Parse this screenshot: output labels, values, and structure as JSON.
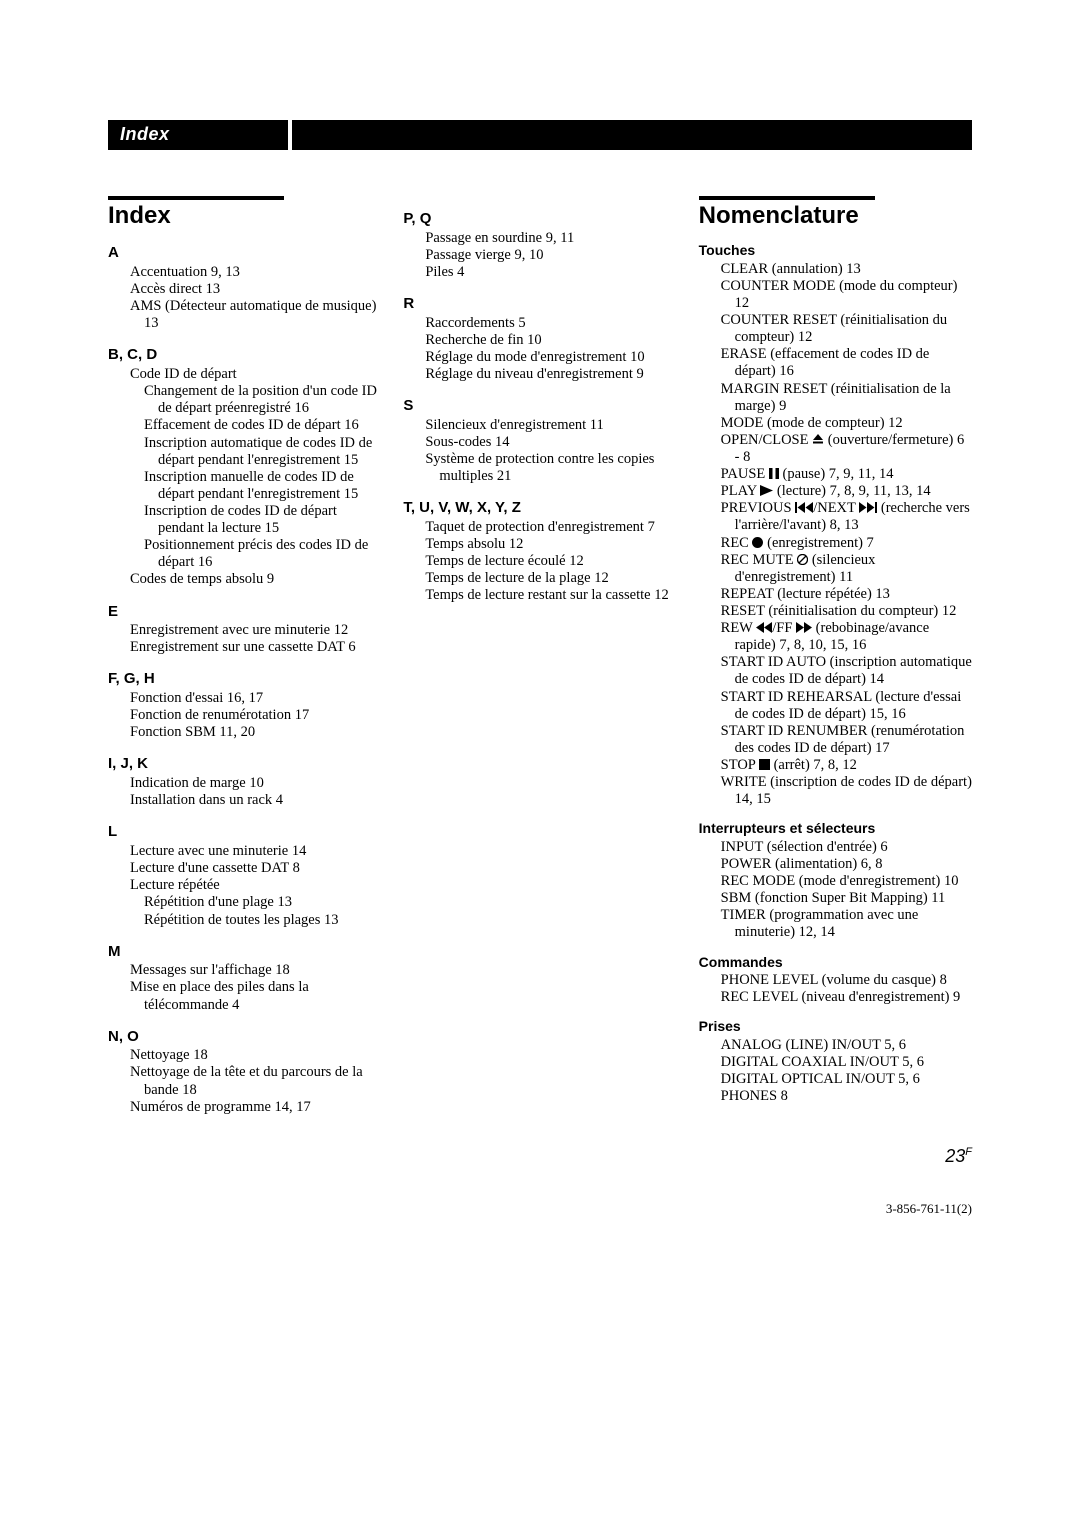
{
  "header": {
    "title": "Index"
  },
  "col1": {
    "mainTitle": "Index",
    "groups": [
      {
        "letter": "A",
        "entries": [
          {
            "t": "Accentuation  9, 13"
          },
          {
            "t": "Accès direct  13"
          },
          {
            "t": "AMS (Détecteur automatique de musique)  13"
          }
        ]
      },
      {
        "letter": "B, C, D",
        "entries": [
          {
            "t": "Code ID de départ"
          },
          {
            "t": "Changement de la position d'un code ID de départ préenregistré  16",
            "lvl": 1
          },
          {
            "t": "Effacement de codes ID de départ  16",
            "lvl": 1
          },
          {
            "t": "Inscription automatique de codes ID de départ pendant l'enregistrement  15",
            "lvl": 1
          },
          {
            "t": "Inscription manuelle de codes ID de départ pendant l'enregistrement  15",
            "lvl": 1
          },
          {
            "t": "Inscription de codes ID de départ pendant la lecture  15",
            "lvl": 1
          },
          {
            "t": "Positionnement précis des codes ID de départ  16",
            "lvl": 1
          },
          {
            "t": "Codes de temps absolu  9"
          }
        ]
      },
      {
        "letter": "E",
        "entries": [
          {
            "t": "Enregistrement avec ure minuterie  12"
          },
          {
            "t": "Enregistrement sur une cassette DAT 6"
          }
        ]
      },
      {
        "letter": "F, G, H",
        "entries": [
          {
            "t": "Fonction d'essai  16, 17"
          },
          {
            "t": "Fonction de renumérotation  17"
          },
          {
            "t": "Fonction SBM  11, 20"
          }
        ]
      },
      {
        "letter": "I, J, K",
        "entries": [
          {
            "t": "Indication de marge  10"
          },
          {
            "t": "Installation dans un rack  4"
          }
        ]
      },
      {
        "letter": "L",
        "entries": [
          {
            "t": "Lecture avec une minuterie  14"
          },
          {
            "t": "Lecture d'une cassette DAT  8"
          },
          {
            "t": "Lecture répétée"
          },
          {
            "t": "Répétition d'une plage  13",
            "lvl": 1
          },
          {
            "t": "Répétition de toutes les plages  13",
            "lvl": 1
          }
        ]
      },
      {
        "letter": "M",
        "entries": [
          {
            "t": "Messages sur l'affichage  18"
          },
          {
            "t": "Mise en place des piles dans la télécommande  4"
          }
        ]
      },
      {
        "letter": "N, O",
        "entries": [
          {
            "t": "Nettoyage  18"
          },
          {
            "t": "Nettoyage de la tête et du parcours de la bande  18"
          },
          {
            "t": "Numéros de programme  14, 17"
          }
        ]
      }
    ]
  },
  "col2": {
    "groups": [
      {
        "letter": "P, Q",
        "entries": [
          {
            "t": "Passage en sourdine  9, 11"
          },
          {
            "t": "Passage vierge  9, 10"
          },
          {
            "t": "Piles  4"
          }
        ]
      },
      {
        "letter": "R",
        "entries": [
          {
            "t": "Raccordements  5"
          },
          {
            "t": "Recherche de fin  10"
          },
          {
            "t": "Réglage du mode d'enregistrement  10"
          },
          {
            "t": "Réglage du niveau d'enregistrement  9"
          }
        ]
      },
      {
        "letter": "S",
        "entries": [
          {
            "t": "Silencieux d'enregistrement  11"
          },
          {
            "t": "Sous-codes  14"
          },
          {
            "t": "Système de protection contre les copies multiples  21"
          }
        ]
      },
      {
        "letter": "T, U, V, W, X, Y, Z",
        "entries": [
          {
            "t": "Taquet de protection d'enregistrement  7"
          },
          {
            "t": "Temps absolu  12"
          },
          {
            "t": "Temps de lecture écoulé  12"
          },
          {
            "t": "Temps de lecture de la plage  12"
          },
          {
            "t": "Temps de lecture restant sur la cassette  12"
          }
        ]
      }
    ]
  },
  "col3": {
    "mainTitle": "Nomenclature",
    "sections": [
      {
        "sub": "Touches",
        "entries": [
          {
            "t": "CLEAR (annulation)  13"
          },
          {
            "t": "COUNTER MODE (mode du compteur)  12"
          },
          {
            "t": "COUNTER RESET (réinitialisation du compteur)  12"
          },
          {
            "t": "ERASE (effacement de codes ID de départ)  16"
          },
          {
            "t": "MARGIN RESET (réinitialisation de la marge)  9"
          },
          {
            "t": "MODE (mode de compteur)  12"
          },
          {
            "icon": "eject",
            "pre": "OPEN/CLOSE ",
            "post": " (ouverture/fermeture)  6 - 8"
          },
          {
            "icon": "pause",
            "pre": "PAUSE ",
            "post": " (pause)  7, 9, 11, 14"
          },
          {
            "icon": "play",
            "pre": "PLAY ",
            "post": " (lecture)  7, 8, 9, 11, 13, 14"
          },
          {
            "icon": "prevnext",
            "pre": "PREVIOUS ",
            "mid": "/NEXT ",
            "post": " (recherche vers l'arrière/l'avant)  8, 13"
          },
          {
            "icon": "rec",
            "pre": "REC ",
            "post": " (enregistrement)  7"
          },
          {
            "icon": "recmute",
            "pre": "REC MUTE ",
            "post": " (silencieux d'enregistrement)  11"
          },
          {
            "t": "REPEAT (lecture répétée)  13"
          },
          {
            "t": "RESET (réinitialisation du compteur)  12"
          },
          {
            "icon": "rewff",
            "pre": "REW ",
            "mid": "/FF ",
            "post": " (rebobinage/avance rapide)  7, 8, 10, 15, 16"
          },
          {
            "t": "START ID AUTO (inscription automatique de codes ID de départ)  14"
          },
          {
            "t": "START ID REHEARSAL (lecture d'essai de codes ID de départ)  15, 16"
          },
          {
            "t": "START ID RENUMBER (renumérotation des codes ID de départ)  17"
          },
          {
            "icon": "stop",
            "pre": "STOP ",
            "post": " (arrêt)  7, 8, 12"
          },
          {
            "t": "WRITE (inscription de codes ID de départ)  14, 15"
          }
        ]
      },
      {
        "sub": "Interrupteurs et sélecteurs",
        "entries": [
          {
            "t": "INPUT (sélection d'entrée)  6"
          },
          {
            "t": "POWER (alimentation)  6, 8"
          },
          {
            "t": "REC MODE (mode d'enregistrement)  10"
          },
          {
            "t": "SBM (fonction Super Bit Mapping)  11"
          },
          {
            "t": "TIMER (programmation avec une minuterie)  12, 14"
          }
        ]
      },
      {
        "sub": "Commandes",
        "entries": [
          {
            "t": "PHONE LEVEL (volume du casque)  8"
          },
          {
            "t": "REC LEVEL (niveau d'enregistrement)  9"
          }
        ]
      },
      {
        "sub": "Prises",
        "entries": [
          {
            "t": "ANALOG (LINE) IN/OUT  5, 6"
          },
          {
            "t": "DIGITAL COAXIAL IN/OUT  5, 6"
          },
          {
            "t": "DIGITAL OPTICAL IN/OUT  5, 6"
          },
          {
            "t": "PHONES  8"
          }
        ]
      }
    ]
  },
  "pageNumber": "23",
  "pageNumberSuffix": "F",
  "docCode": "3-856-761-11(2)",
  "colors": {
    "text": "#000000",
    "bg": "#ffffff"
  },
  "fonts": {
    "heading_family": "Arial",
    "body_family": "Palatino"
  }
}
